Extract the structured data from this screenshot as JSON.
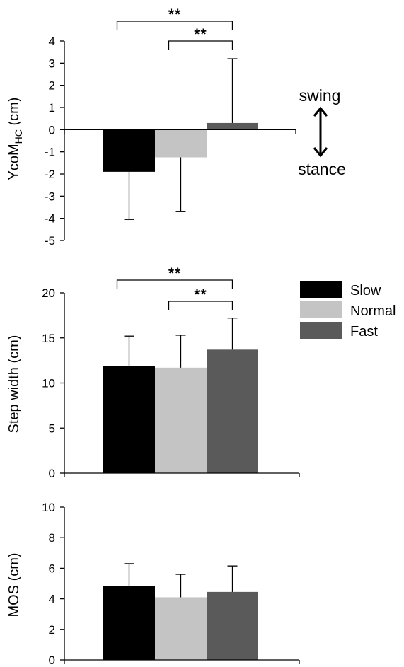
{
  "colors": {
    "Slow": "#000000",
    "Normal": "#c4c4c4",
    "Fast": "#5a5a5a"
  },
  "legend": [
    "Slow",
    "Normal",
    "Fast"
  ],
  "annotations": {
    "swing": "swing",
    "stance": "stance"
  },
  "chart_data": [
    {
      "type": "bar",
      "categories": [
        "Slow",
        "Normal",
        "Fast"
      ],
      "values": [
        -1.9,
        -1.25,
        0.3
      ],
      "error": [
        2.15,
        2.45,
        2.9
      ],
      "ylabel_main": "YcoM",
      "ylabel_sub": "HC",
      "ylabel_unit": " (cm)",
      "ylim": [
        -5,
        4
      ],
      "yticks": [
        4,
        3,
        2,
        1,
        0,
        -1,
        -2,
        -3,
        -4,
        -5
      ],
      "significance": [
        {
          "from": "Slow",
          "to": "Fast",
          "label": "**"
        },
        {
          "from": "Normal",
          "to": "Fast",
          "label": "**"
        }
      ]
    },
    {
      "type": "bar",
      "categories": [
        "Slow",
        "Normal",
        "Fast"
      ],
      "values": [
        11.9,
        11.7,
        13.7
      ],
      "error": [
        3.3,
        3.6,
        3.5
      ],
      "ylabel": "Step width (cm)",
      "ylim": [
        0,
        20
      ],
      "yticks": [
        20,
        15,
        10,
        5,
        0
      ],
      "significance": [
        {
          "from": "Slow",
          "to": "Fast",
          "label": "**"
        },
        {
          "from": "Normal",
          "to": "Fast",
          "label": "**"
        }
      ]
    },
    {
      "type": "bar",
      "categories": [
        "Slow",
        "Normal",
        "Fast"
      ],
      "values": [
        4.85,
        4.1,
        4.45
      ],
      "error": [
        1.45,
        1.5,
        1.7
      ],
      "ylabel": "MOS (cm)",
      "ylim": [
        0,
        10
      ],
      "yticks": [
        10,
        8,
        6,
        4,
        2,
        0
      ],
      "significance": []
    }
  ]
}
